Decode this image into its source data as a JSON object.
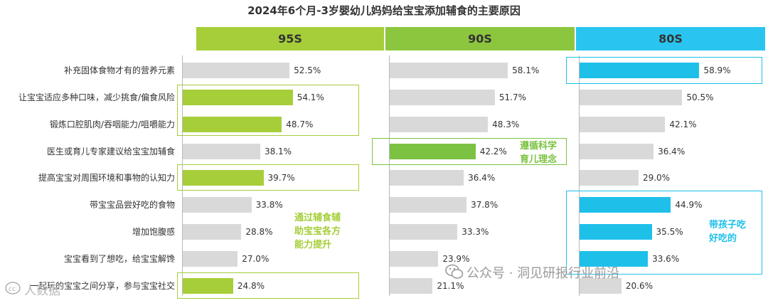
{
  "title": "2024年6个月-3岁婴幼儿妈妈给宝宝添加辅食的主要原因",
  "colors": {
    "gray": "#d9d9d9",
    "green_95s": "#a6ce39",
    "green_90s": "#7cc242",
    "blue_80s": "#1ec0ea",
    "header_95s": "#a6ce39",
    "header_90s": "#8cc63f",
    "header_80s": "#29c5f0"
  },
  "annotations": {
    "note_95s": [
      "通过辅食辅",
      "助宝宝各方",
      "能力提升"
    ],
    "note_90s": [
      "遵循科学",
      "育儿理念"
    ],
    "note_80s": [
      "带孩子吃",
      "好吃的"
    ]
  },
  "watermark": {
    "text": "公众号 · 洞见研报行业前沿",
    "logo_text": "人数据"
  },
  "chart_data": {
    "type": "bar",
    "orientation": "horizontal",
    "title": "2024年6个月-3岁婴幼儿妈妈给宝宝添加辅食的主要原因",
    "categories": [
      "补充固体食物才有的营养元素",
      "让宝宝适应多种口味，减少挑食/偏食风险",
      "锻炼口腔肌肉/吞咽能力/咀嚼能力",
      "医生或育儿专家建议给宝宝加辅食",
      "提高宝宝对周围环境和事物的认知力",
      "带宝宝品尝好吃的食物",
      "增加饱腹感",
      "宝宝看到了想吃，给宝宝解馋",
      "一起玩的宝宝之间分享，参与宝宝社交"
    ],
    "series": [
      {
        "name": "95S",
        "values": [
          52.5,
          54.1,
          48.7,
          38.1,
          39.7,
          33.8,
          28.8,
          27.0,
          24.8
        ],
        "labels": [
          "52.5%",
          "54.1%",
          "48.7%",
          "38.1%",
          "39.7%",
          "33.8%",
          "28.8%",
          "27.0%",
          "24.8%"
        ],
        "highlight": [
          false,
          true,
          true,
          false,
          true,
          false,
          false,
          false,
          true
        ]
      },
      {
        "name": "90S",
        "values": [
          58.1,
          51.7,
          48.3,
          42.2,
          36.4,
          37.8,
          33.3,
          23.9,
          21.1
        ],
        "labels": [
          "58.1%",
          "51.7%",
          "48.3%",
          "42.2%",
          "36.4%",
          "37.8%",
          "33.3%",
          "23.9%",
          "21.1%"
        ],
        "highlight": [
          false,
          false,
          false,
          true,
          false,
          false,
          false,
          false,
          false
        ]
      },
      {
        "name": "80S",
        "values": [
          58.9,
          50.5,
          42.1,
          36.4,
          29.0,
          44.9,
          35.5,
          33.6,
          20.6
        ],
        "labels": [
          "58.9%",
          "50.5%",
          "42.1%",
          "36.4%",
          "29.0%",
          "44.9%",
          "35.5%",
          "33.6%",
          "20.6%"
        ],
        "highlight": [
          true,
          false,
          false,
          false,
          false,
          true,
          true,
          true,
          false
        ]
      }
    ],
    "xlim": [
      0,
      100
    ],
    "grid": false,
    "legend": "none"
  }
}
